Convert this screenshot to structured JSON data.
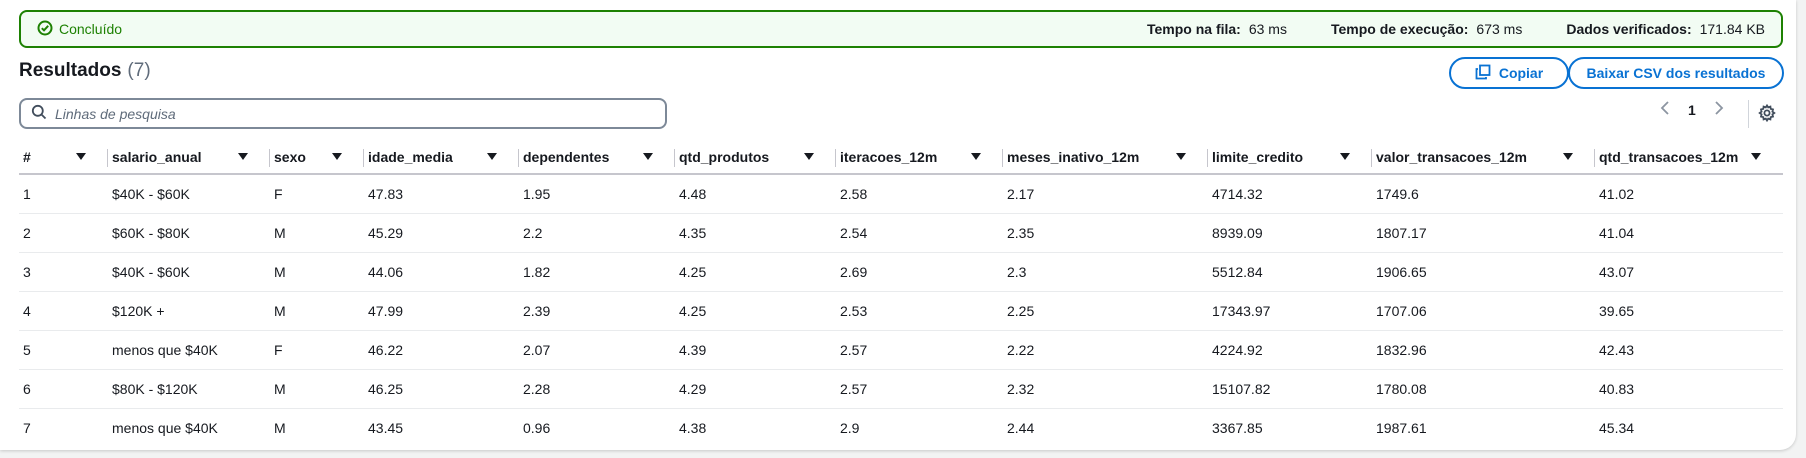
{
  "status": {
    "label": "Concluído",
    "color": "#1d8102",
    "metrics": [
      {
        "label": "Tempo na fila:",
        "value": "63 ms"
      },
      {
        "label": "Tempo de execução:",
        "value": "673 ms"
      },
      {
        "label": "Dados verificados:",
        "value": "171.84 KB"
      }
    ]
  },
  "results": {
    "title": "Resultados",
    "count": "(7)"
  },
  "buttons": {
    "copy": "Copiar",
    "csv": "Baixar CSV dos resultados"
  },
  "search": {
    "placeholder": "Linhas de pesquisa"
  },
  "pager": {
    "page": "1"
  },
  "table": {
    "columns": [
      "#",
      "salario_anual",
      "sexo",
      "idade_media",
      "dependentes",
      "qtd_produtos",
      "iteracoes_12m",
      "meses_inativo_12m",
      "limite_credito",
      "valor_transacoes_12m",
      "qtd_transacoes_12m"
    ],
    "rows": [
      [
        "1",
        "$40K - $60K",
        "F",
        "47.83",
        "1.95",
        "4.48",
        "2.58",
        "2.17",
        "4714.32",
        "1749.6",
        "41.02"
      ],
      [
        "2",
        "$60K - $80K",
        "M",
        "45.29",
        "2.2",
        "4.35",
        "2.54",
        "2.35",
        "8939.09",
        "1807.17",
        "41.04"
      ],
      [
        "3",
        "$40K - $60K",
        "M",
        "44.06",
        "1.82",
        "4.25",
        "2.69",
        "2.3",
        "5512.84",
        "1906.65",
        "43.07"
      ],
      [
        "4",
        "$120K +",
        "M",
        "47.99",
        "2.39",
        "4.25",
        "2.53",
        "2.25",
        "17343.97",
        "1707.06",
        "39.65"
      ],
      [
        "5",
        "menos que $40K",
        "F",
        "46.22",
        "2.07",
        "4.39",
        "2.57",
        "2.22",
        "4224.92",
        "1832.96",
        "42.43"
      ],
      [
        "6",
        "$80K - $120K",
        "M",
        "46.25",
        "2.28",
        "4.29",
        "2.57",
        "2.32",
        "15107.82",
        "1780.08",
        "40.83"
      ],
      [
        "7",
        "menos que $40K",
        "M",
        "43.45",
        "0.96",
        "4.38",
        "2.9",
        "2.44",
        "3367.85",
        "1987.61",
        "45.34"
      ]
    ]
  }
}
